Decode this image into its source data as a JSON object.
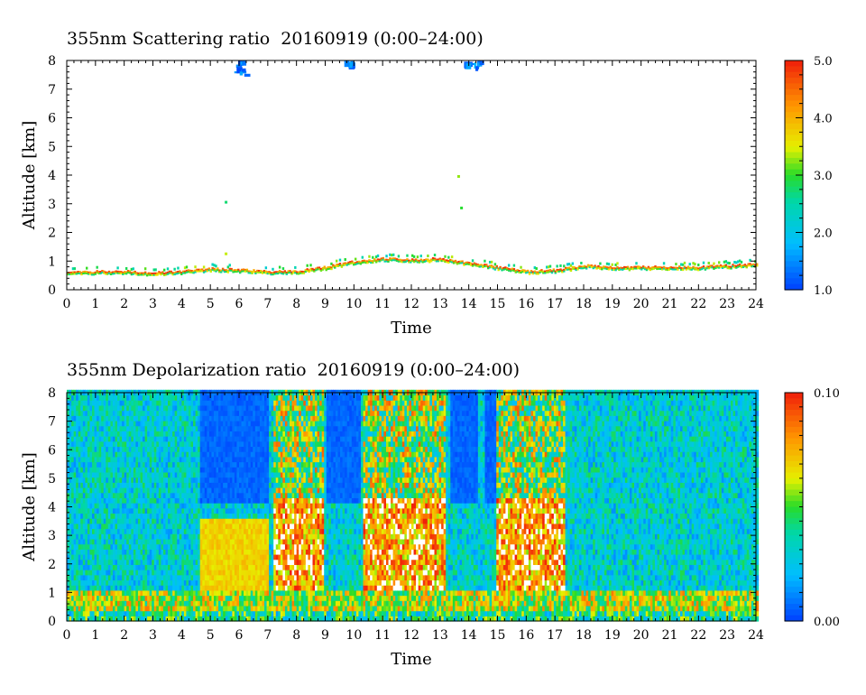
{
  "chart_data": [
    {
      "type": "heatmap",
      "title": "355nm Scattering ratio  20160919 (0:00–24:00)",
      "xlabel": "Time",
      "ylabel": "Altitude [km]",
      "x_ticks": [
        "0",
        "1",
        "2",
        "3",
        "4",
        "5",
        "6",
        "7",
        "8",
        "9",
        "10",
        "11",
        "12",
        "13",
        "14",
        "15",
        "16",
        "17",
        "18",
        "19",
        "20",
        "21",
        "22",
        "23",
        "24"
      ],
      "y_ticks": [
        "0",
        "1",
        "2",
        "3",
        "4",
        "5",
        "6",
        "7",
        "8"
      ],
      "xlim": [
        0,
        24
      ],
      "ylim": [
        0,
        8
      ],
      "colorbar": {
        "min": 1.0,
        "max": 5.0,
        "tick_labels": [
          "5.0",
          "4.0",
          "3.0",
          "2.0",
          "1.0"
        ],
        "tick_values": [
          5.0,
          4.0,
          3.0,
          2.0,
          1.0
        ]
      },
      "features": {
        "boundary_layer_top_km": [
          [
            0,
            0.55
          ],
          [
            1,
            0.6
          ],
          [
            2,
            0.6
          ],
          [
            3,
            0.55
          ],
          [
            4,
            0.6
          ],
          [
            5,
            0.7
          ],
          [
            6,
            0.65
          ],
          [
            7,
            0.6
          ],
          [
            8,
            0.6
          ],
          [
            9,
            0.75
          ],
          [
            10,
            0.95
          ],
          [
            11,
            1.05
          ],
          [
            12,
            1.0
          ],
          [
            13,
            1.05
          ],
          [
            14,
            0.9
          ],
          [
            15,
            0.75
          ],
          [
            16,
            0.6
          ],
          [
            17,
            0.65
          ],
          [
            18,
            0.8
          ],
          [
            19,
            0.75
          ],
          [
            20,
            0.75
          ],
          [
            21,
            0.75
          ],
          [
            22,
            0.75
          ],
          [
            23,
            0.8
          ],
          [
            24,
            0.85
          ]
        ],
        "high_cloud_patches": [
          [
            5.9,
            7.6
          ],
          [
            6.1,
            7.5
          ],
          [
            9.8,
            7.9
          ],
          [
            13.9,
            7.9
          ],
          [
            14.3,
            7.8
          ]
        ],
        "mid_cloud_patches": [
          [
            5.5,
            3.1
          ],
          [
            5.5,
            1.3
          ],
          [
            13.6,
            4.0
          ],
          [
            13.7,
            2.9
          ]
        ]
      }
    },
    {
      "type": "heatmap",
      "title": "355nm Depolarization ratio  20160919 (0:00–24:00)",
      "xlabel": "Time",
      "ylabel": "Altitude [km]",
      "x_ticks": [
        "0",
        "1",
        "2",
        "3",
        "4",
        "5",
        "6",
        "7",
        "8",
        "9",
        "10",
        "11",
        "12",
        "13",
        "14",
        "15",
        "16",
        "17",
        "18",
        "19",
        "20",
        "21",
        "22",
        "23",
        "24"
      ],
      "y_ticks": [
        "0",
        "1",
        "2",
        "3",
        "4",
        "5",
        "6",
        "7",
        "8"
      ],
      "xlim": [
        0,
        24
      ],
      "ylim": [
        0,
        8
      ],
      "colorbar": {
        "min": 0.0,
        "max": 0.1,
        "tick_labels": [
          "0.10",
          "0.00"
        ],
        "tick_values": [
          0.1,
          0.0
        ]
      },
      "features": {
        "near_surface_layer_km": [
          0,
          1.0
        ],
        "low_depol_segments_hours": [
          [
            4.6,
            7.0
          ],
          [
            9.0,
            10.2
          ],
          [
            13.3,
            14.3
          ],
          [
            14.5,
            14.9
          ]
        ],
        "high_depol_segments_hours": [
          [
            7.2,
            8.9
          ],
          [
            10.3,
            13.2
          ],
          [
            14.9,
            17.3
          ]
        ],
        "dust_layer_yellow": {
          "x": [
            4.6,
            7.0
          ],
          "top_km": 3.6,
          "bottom_km": 1.0
        }
      }
    }
  ]
}
